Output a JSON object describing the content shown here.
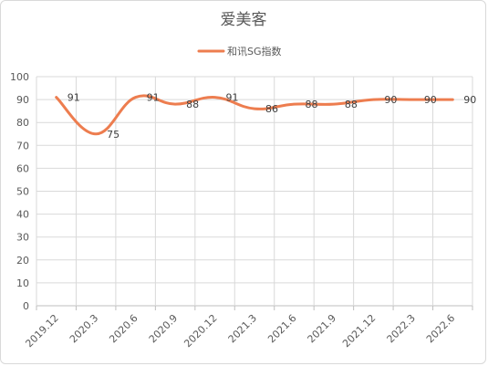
{
  "chart_data": {
    "type": "line",
    "title": "爱美客",
    "categories": [
      "2019.12",
      "2020.3",
      "2020.6",
      "2020.9",
      "2020.12",
      "2021.3",
      "2021.6",
      "2021.9",
      "2021.12",
      "2022.3",
      "2022.6"
    ],
    "series": [
      {
        "name": "和讯SG指数",
        "values": [
          91,
          75,
          91,
          88,
          91,
          86,
          88,
          88,
          90,
          90,
          90
        ],
        "color": "#ED7D4F"
      }
    ],
    "ylim": [
      0,
      100
    ],
    "yticks": [
      0,
      10,
      20,
      30,
      40,
      50,
      60,
      70,
      80,
      90,
      100
    ],
    "grid": true,
    "legend": "top",
    "data_labels": true
  }
}
